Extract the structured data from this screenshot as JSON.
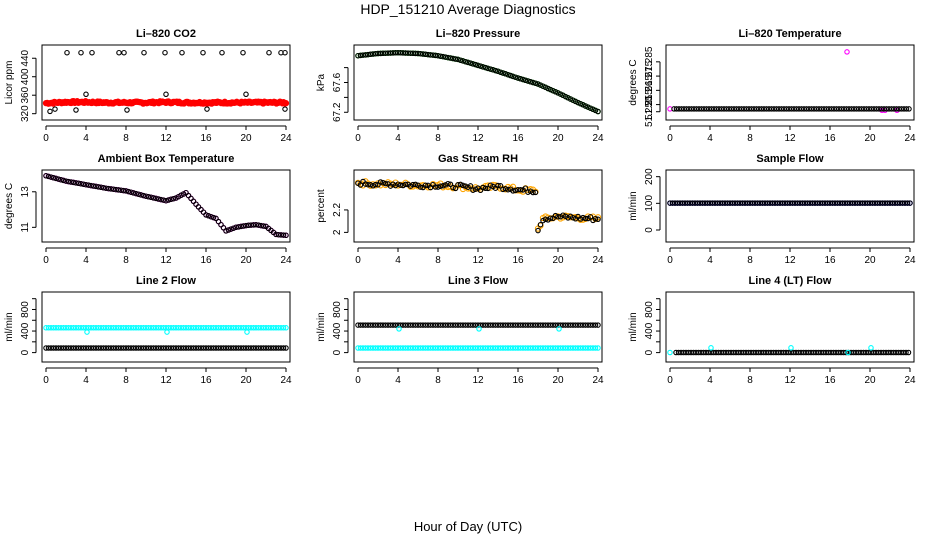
{
  "figure": {
    "title": "HDP_151210  Average Diagnostics",
    "xlabel": "Hour of Day (UTC)"
  },
  "chart_data": [
    {
      "type": "scatter",
      "title": "Li–820 CO2",
      "ylabel": "Licor ppm",
      "xlim": [
        0,
        24
      ],
      "ylim": [
        315,
        460
      ],
      "xticks": [
        0,
        4,
        8,
        12,
        16,
        20,
        24
      ],
      "yticks": [
        320,
        360,
        400,
        440
      ],
      "series": [
        {
          "name": "co2-black",
          "color": "#000000",
          "pattern": "scatter",
          "x": [
            0.4,
            2.1,
            3.5,
            4.6,
            7.3,
            7.8,
            9.8,
            11.9,
            13.6,
            15.7,
            17.6,
            19.7,
            22.3,
            23.5,
            23.9,
            0.9,
            3.0,
            4.0,
            8.1,
            12.0,
            16.1,
            20.0,
            23.9
          ],
          "y": [
            325,
            452,
            452,
            452,
            452,
            452,
            452,
            452,
            452,
            452,
            452,
            452,
            452,
            452,
            452,
            330,
            328,
            362,
            328,
            362,
            330,
            362,
            330
          ]
        },
        {
          "name": "co2-red",
          "color": "#ff0000",
          "pattern": "band",
          "x": [
            0,
            2,
            4,
            6,
            8,
            10,
            12,
            14,
            16,
            18,
            20,
            22,
            24
          ],
          "y": [
            343,
            345,
            345,
            344,
            344,
            344,
            345,
            344,
            344,
            344,
            344,
            344,
            344
          ]
        }
      ]
    },
    {
      "type": "scatter",
      "title": "Li–820 Pressure",
      "ylabel": "kPa",
      "xlim": [
        0,
        24
      ],
      "ylim": [
        67.15,
        68.05
      ],
      "xticks": [
        0,
        4,
        8,
        12,
        16,
        20,
        24
      ],
      "yticks": [
        67.2,
        67.4,
        67.6,
        67.8
      ],
      "yticklabels": [
        "67.2",
        "",
        "67.6",
        ""
      ],
      "series": [
        {
          "name": "pressure-green",
          "color": "#00cc00",
          "pattern": "line",
          "x": [
            0,
            2,
            4,
            6,
            8,
            10,
            12,
            14,
            16,
            18,
            20,
            22,
            24
          ],
          "y": [
            67.96,
            67.99,
            68.0,
            67.99,
            67.96,
            67.91,
            67.83,
            67.75,
            67.66,
            67.58,
            67.46,
            67.33,
            67.21
          ]
        },
        {
          "name": "pressure-black",
          "color": "#000000",
          "pattern": "line",
          "x": [
            0,
            2,
            4,
            6,
            8,
            10,
            12,
            14,
            16,
            18,
            20,
            22,
            24
          ],
          "y": [
            67.96,
            67.99,
            68.0,
            67.99,
            67.96,
            67.91,
            67.83,
            67.75,
            67.66,
            67.58,
            67.46,
            67.33,
            67.21
          ]
        }
      ]
    },
    {
      "type": "scatter",
      "title": "Li–820 Temperature",
      "ylabel": "degrees C",
      "xlim": [
        0,
        24
      ],
      "ylim": [
        51.247,
        51.294
      ],
      "xticks": [
        0,
        4,
        8,
        12,
        16,
        20,
        24
      ],
      "yticks": [
        51.25,
        51.255,
        51.265,
        51.275,
        51.285
      ],
      "yticklabels": [
        "51.250",
        "51.255",
        "51.265",
        "51.275",
        "51.285"
      ],
      "series": [
        {
          "name": "ltemp-magenta",
          "color": "#ff00ff",
          "pattern": "scatter",
          "x": [
            0,
            17.7,
            21.2,
            21.5,
            22.7
          ],
          "y": [
            51.252,
            51.292,
            51.251,
            51.251,
            51.251
          ]
        },
        {
          "name": "ltemp-black",
          "color": "#000000",
          "pattern": "line",
          "x": [
            0.4,
            24
          ],
          "y": [
            51.252,
            51.252
          ]
        }
      ]
    },
    {
      "type": "scatter",
      "title": "Ambient Box Temperature",
      "ylabel": "degrees C",
      "xlim": [
        0,
        24
      ],
      "ylim": [
        10.4,
        14.0
      ],
      "xticks": [
        0,
        4,
        8,
        12,
        16,
        20,
        24
      ],
      "yticks": [
        11,
        13
      ],
      "series": [
        {
          "name": "abt-magenta",
          "color": "#ff00ff",
          "pattern": "line",
          "x": [
            0,
            2,
            4,
            6,
            8,
            10,
            12,
            13,
            14,
            15,
            16,
            17,
            18,
            19,
            20,
            21,
            22,
            23,
            24
          ],
          "y": [
            13.9,
            13.6,
            13.4,
            13.2,
            13.05,
            12.75,
            12.5,
            12.65,
            12.95,
            12.3,
            11.7,
            11.5,
            10.8,
            11.0,
            11.1,
            11.15,
            11.05,
            10.6,
            10.55
          ]
        },
        {
          "name": "abt-black",
          "color": "#000000",
          "pattern": "line",
          "x": [
            0,
            2,
            4,
            6,
            8,
            10,
            12,
            13,
            14,
            15,
            16,
            17,
            18,
            19,
            20,
            21,
            22,
            23,
            24
          ],
          "y": [
            13.9,
            13.6,
            13.4,
            13.2,
            13.05,
            12.75,
            12.5,
            12.65,
            12.95,
            12.3,
            11.7,
            11.5,
            10.8,
            11.0,
            11.1,
            11.15,
            11.05,
            10.6,
            10.55
          ]
        }
      ]
    },
    {
      "type": "scatter",
      "title": "Gas Stream RH",
      "ylabel": "percent",
      "xlim": [
        0,
        24
      ],
      "ylim": [
        1.95,
        2.52
      ],
      "xticks": [
        0,
        4,
        8,
        12,
        16,
        20,
        24
      ],
      "yticks": [
        2.0,
        2.2
      ],
      "series": [
        {
          "name": "rh-orange",
          "color": "#ffa500",
          "pattern": "noisy",
          "x": [
            0,
            2,
            4,
            6,
            8,
            10,
            12,
            14,
            16,
            17.8,
            18.0,
            18.5,
            20,
            22,
            24
          ],
          "y": [
            2.44,
            2.43,
            2.43,
            2.42,
            2.42,
            2.41,
            2.39,
            2.41,
            2.38,
            2.37,
            2.03,
            2.12,
            2.14,
            2.13,
            2.12
          ]
        },
        {
          "name": "rh-black",
          "color": "#000000",
          "pattern": "noisy",
          "x": [
            0,
            2,
            4,
            6,
            8,
            10,
            12,
            14,
            16,
            17.8,
            18.0,
            18.5,
            20,
            22,
            24
          ],
          "y": [
            2.44,
            2.43,
            2.43,
            2.42,
            2.42,
            2.41,
            2.39,
            2.41,
            2.38,
            2.37,
            2.03,
            2.12,
            2.14,
            2.13,
            2.12
          ]
        }
      ]
    },
    {
      "type": "scatter",
      "title": "Sample Flow",
      "ylabel": "ml/min",
      "xlim": [
        0,
        24
      ],
      "ylim": [
        -30,
        210
      ],
      "xticks": [
        0,
        4,
        8,
        12,
        16,
        20,
        24
      ],
      "yticks": [
        0,
        100,
        200
      ],
      "series": [
        {
          "name": "sf-blue",
          "color": "#0000ff",
          "pattern": "line",
          "x": [
            0,
            24
          ],
          "y": [
            101,
            101
          ]
        },
        {
          "name": "sf-black",
          "color": "#000000",
          "pattern": "line",
          "x": [
            0,
            24
          ],
          "y": [
            101,
            101
          ]
        }
      ]
    },
    {
      "type": "scatter",
      "title": "Line 2 Flow",
      "ylabel": "ml/min",
      "xlim": [
        0,
        24
      ],
      "ylim": [
        -100,
        1050
      ],
      "xticks": [
        0,
        4,
        8,
        12,
        16,
        20,
        24
      ],
      "yticks": [
        0,
        200,
        400,
        600,
        800,
        1000
      ],
      "yticklabels": [
        "0",
        "",
        "400",
        "",
        "800",
        ""
      ],
      "series": [
        {
          "name": "l2-cyan",
          "color": "#00ffff",
          "pattern": "line",
          "x": [
            0,
            24
          ],
          "y": [
            460,
            460
          ]
        },
        {
          "name": "l2-cyan-dips",
          "color": "#00ffff",
          "pattern": "scatter",
          "x": [
            4.1,
            12.1,
            20.1
          ],
          "y": [
            380,
            380,
            380
          ]
        },
        {
          "name": "l2-black",
          "color": "#000000",
          "pattern": "line",
          "x": [
            0,
            24
          ],
          "y": [
            85,
            85
          ]
        }
      ]
    },
    {
      "type": "scatter",
      "title": "Line 3 Flow",
      "ylabel": "ml/min",
      "xlim": [
        0,
        24
      ],
      "ylim": [
        -100,
        1050
      ],
      "xticks": [
        0,
        4,
        8,
        12,
        16,
        20,
        24
      ],
      "yticks": [
        0,
        200,
        400,
        600,
        800,
        1000
      ],
      "yticklabels": [
        "0",
        "",
        "400",
        "",
        "800",
        ""
      ],
      "series": [
        {
          "name": "l3-black",
          "color": "#000000",
          "pattern": "line",
          "x": [
            0,
            24
          ],
          "y": [
            510,
            510
          ]
        },
        {
          "name": "l3-cyan",
          "color": "#00ffff",
          "pattern": "line",
          "x": [
            0,
            24
          ],
          "y": [
            85,
            85
          ]
        },
        {
          "name": "l3-cyan-dips",
          "color": "#00ffff",
          "pattern": "scatter",
          "x": [
            4.1,
            12.1,
            20.1
          ],
          "y": [
            440,
            440,
            440
          ]
        }
      ]
    },
    {
      "type": "scatter",
      "title": "Line 4 (LT) Flow",
      "ylabel": "ml/min",
      "xlim": [
        0,
        24
      ],
      "ylim": [
        -100,
        1050
      ],
      "xticks": [
        0,
        4,
        8,
        12,
        16,
        20,
        24
      ],
      "yticks": [
        0,
        200,
        400,
        600,
        800,
        1000
      ],
      "yticklabels": [
        "0",
        "",
        "400",
        "",
        "800",
        ""
      ],
      "series": [
        {
          "name": "l4-black",
          "color": "#000000",
          "pattern": "line",
          "x": [
            0.6,
            24
          ],
          "y": [
            2,
            2
          ]
        },
        {
          "name": "l4-cyan",
          "color": "#00ffff",
          "pattern": "scatter",
          "x": [
            0,
            4.1,
            12.1,
            17.8,
            20.1
          ],
          "y": [
            2,
            90,
            90,
            2,
            90
          ]
        }
      ]
    }
  ]
}
